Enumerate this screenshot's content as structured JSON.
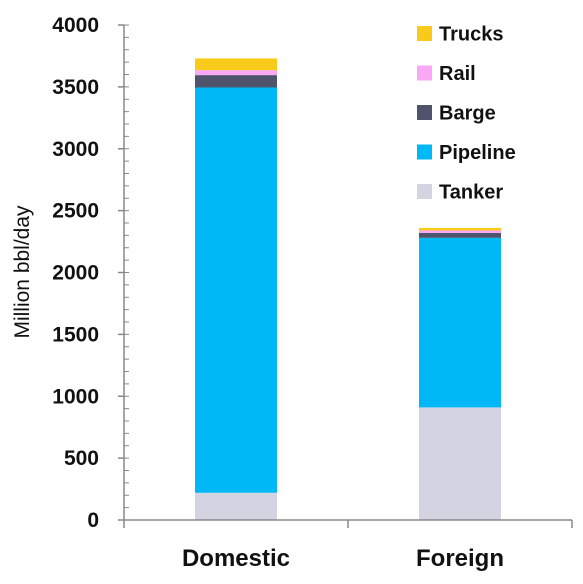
{
  "chart_data": {
    "type": "bar",
    "stacked": true,
    "categories": [
      "Domestic",
      "Foreign"
    ],
    "ylabel": "Million bbl/day",
    "xlabel": "",
    "ylim": [
      0,
      4000
    ],
    "yticks": [
      0,
      500,
      1000,
      1500,
      2000,
      2500,
      3000,
      3500,
      4000
    ],
    "grid": false,
    "legend_position": "top-right",
    "series": [
      {
        "name": "Tanker",
        "color": "#d3d3e1",
        "values": [
          220,
          910
        ]
      },
      {
        "name": "Pipeline",
        "color": "#00b8f5",
        "values": [
          3275,
          1370
        ]
      },
      {
        "name": "Barge",
        "color": "#4f536b",
        "values": [
          100,
          40
        ]
      },
      {
        "name": "Rail",
        "color": "#f9a8f5",
        "values": [
          40,
          20
        ]
      },
      {
        "name": "Trucks",
        "color": "#f9ca1a",
        "values": [
          95,
          20
        ]
      }
    ]
  }
}
